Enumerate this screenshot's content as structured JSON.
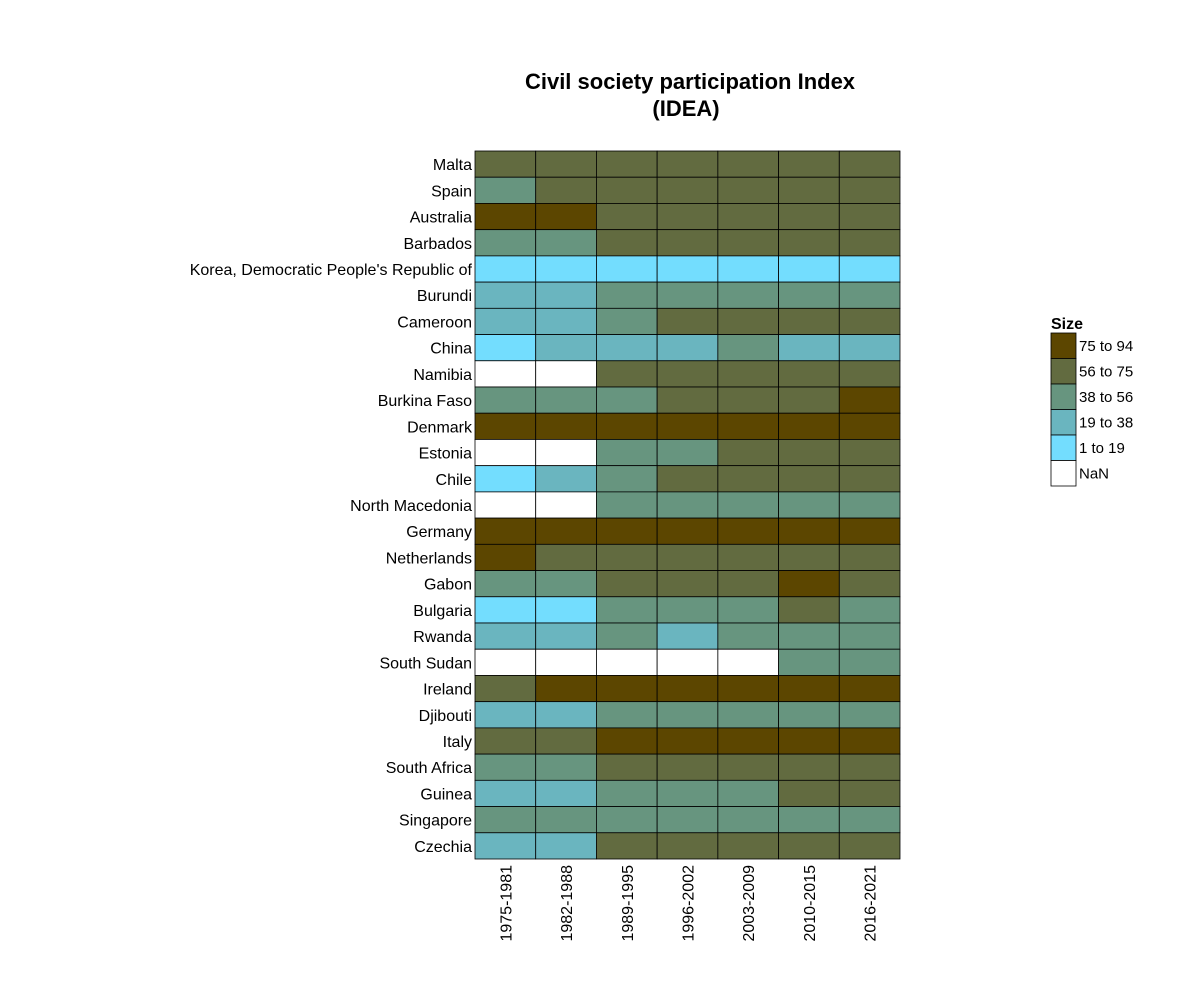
{
  "chart_data": {
    "type": "heatmap",
    "title_lines": [
      "Civil society participation Index",
      "(IDEA)"
    ],
    "x": [
      "1975-1981",
      "1982-1988",
      "1989-1995",
      "1996-2002",
      "2003-2009",
      "2010-2015",
      "2016-2021"
    ],
    "y": [
      "Malta",
      "Spain",
      "Australia",
      "Barbados",
      "Korea, Democratic People's Republic of",
      "Burundi",
      "Cameroon",
      "China",
      "Namibia",
      "Burkina Faso",
      "Denmark",
      "Estonia",
      "Chile",
      "North Macedonia",
      "Germany",
      "Netherlands",
      "Gabon",
      "Bulgaria",
      "Rwanda",
      "South Sudan",
      "Ireland",
      "Djibouti",
      "Italy",
      "South Africa",
      "Guinea",
      "Singapore",
      "Czechia"
    ],
    "legend": {
      "title": "Size",
      "position": "right",
      "categories": [
        {
          "label": "75 to 94",
          "color": "#5c4600"
        },
        {
          "label": "56 to 75",
          "color": "#626b40"
        },
        {
          "label": "38 to 56",
          "color": "#67957f"
        },
        {
          "label": "19 to 38",
          "color": "#6ab5bf"
        },
        {
          "label": "1 to 19",
          "color": "#73ddfe"
        },
        {
          "label": "NaN",
          "color": "#ffffff"
        }
      ]
    },
    "category_matrix": [
      [
        "56 to 75",
        "56 to 75",
        "56 to 75",
        "56 to 75",
        "56 to 75",
        "56 to 75",
        "56 to 75"
      ],
      [
        "38 to 56",
        "56 to 75",
        "56 to 75",
        "56 to 75",
        "56 to 75",
        "56 to 75",
        "56 to 75"
      ],
      [
        "75 to 94",
        "75 to 94",
        "56 to 75",
        "56 to 75",
        "56 to 75",
        "56 to 75",
        "56 to 75"
      ],
      [
        "38 to 56",
        "38 to 56",
        "56 to 75",
        "56 to 75",
        "56 to 75",
        "56 to 75",
        "56 to 75"
      ],
      [
        "1 to 19",
        "1 to 19",
        "1 to 19",
        "1 to 19",
        "1 to 19",
        "1 to 19",
        "1 to 19"
      ],
      [
        "19 to 38",
        "19 to 38",
        "38 to 56",
        "38 to 56",
        "38 to 56",
        "38 to 56",
        "38 to 56"
      ],
      [
        "19 to 38",
        "19 to 38",
        "38 to 56",
        "56 to 75",
        "56 to 75",
        "56 to 75",
        "56 to 75"
      ],
      [
        "1 to 19",
        "19 to 38",
        "19 to 38",
        "19 to 38",
        "38 to 56",
        "19 to 38",
        "19 to 38"
      ],
      [
        "NaN",
        "NaN",
        "56 to 75",
        "56 to 75",
        "56 to 75",
        "56 to 75",
        "56 to 75"
      ],
      [
        "38 to 56",
        "38 to 56",
        "38 to 56",
        "56 to 75",
        "56 to 75",
        "56 to 75",
        "75 to 94"
      ],
      [
        "75 to 94",
        "75 to 94",
        "75 to 94",
        "75 to 94",
        "75 to 94",
        "75 to 94",
        "75 to 94"
      ],
      [
        "NaN",
        "NaN",
        "38 to 56",
        "38 to 56",
        "56 to 75",
        "56 to 75",
        "56 to 75"
      ],
      [
        "1 to 19",
        "19 to 38",
        "38 to 56",
        "56 to 75",
        "56 to 75",
        "56 to 75",
        "56 to 75"
      ],
      [
        "NaN",
        "NaN",
        "38 to 56",
        "38 to 56",
        "38 to 56",
        "38 to 56",
        "38 to 56"
      ],
      [
        "75 to 94",
        "75 to 94",
        "75 to 94",
        "75 to 94",
        "75 to 94",
        "75 to 94",
        "75 to 94"
      ],
      [
        "75 to 94",
        "56 to 75",
        "56 to 75",
        "56 to 75",
        "56 to 75",
        "56 to 75",
        "56 to 75"
      ],
      [
        "38 to 56",
        "38 to 56",
        "56 to 75",
        "56 to 75",
        "56 to 75",
        "75 to 94",
        "56 to 75"
      ],
      [
        "1 to 19",
        "1 to 19",
        "38 to 56",
        "38 to 56",
        "38 to 56",
        "56 to 75",
        "38 to 56"
      ],
      [
        "19 to 38",
        "19 to 38",
        "38 to 56",
        "19 to 38",
        "38 to 56",
        "38 to 56",
        "38 to 56"
      ],
      [
        "NaN",
        "NaN",
        "NaN",
        "NaN",
        "NaN",
        "38 to 56",
        "38 to 56"
      ],
      [
        "56 to 75",
        "75 to 94",
        "75 to 94",
        "75 to 94",
        "75 to 94",
        "75 to 94",
        "75 to 94"
      ],
      [
        "19 to 38",
        "19 to 38",
        "38 to 56",
        "38 to 56",
        "38 to 56",
        "38 to 56",
        "38 to 56"
      ],
      [
        "56 to 75",
        "56 to 75",
        "75 to 94",
        "75 to 94",
        "75 to 94",
        "75 to 94",
        "75 to 94"
      ],
      [
        "38 to 56",
        "38 to 56",
        "56 to 75",
        "56 to 75",
        "56 to 75",
        "56 to 75",
        "56 to 75"
      ],
      [
        "19 to 38",
        "19 to 38",
        "38 to 56",
        "38 to 56",
        "38 to 56",
        "56 to 75",
        "56 to 75"
      ],
      [
        "38 to 56",
        "38 to 56",
        "38 to 56",
        "38 to 56",
        "38 to 56",
        "38 to 56",
        "38 to 56"
      ],
      [
        "19 to 38",
        "19 to 38",
        "56 to 75",
        "56 to 75",
        "56 to 75",
        "56 to 75",
        "56 to 75"
      ]
    ]
  }
}
